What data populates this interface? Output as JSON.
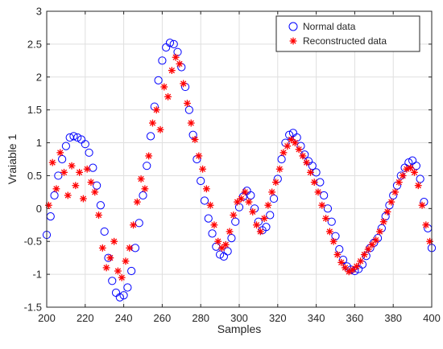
{
  "chart_data": {
    "type": "scatter",
    "title": "",
    "xlabel": "Samples",
    "ylabel": "Vraiable 1",
    "xlim": [
      200,
      400
    ],
    "ylim": [
      -1.5,
      3
    ],
    "xticks": [
      200,
      220,
      240,
      260,
      280,
      300,
      320,
      340,
      360,
      380,
      400
    ],
    "yticks": [
      -1.5,
      -1,
      -0.5,
      0,
      0.5,
      1,
      1.5,
      2,
      2.5,
      3
    ],
    "xtick_labels": [
      "200",
      "220",
      "240",
      "260",
      "280",
      "300",
      "320",
      "340",
      "360",
      "380",
      "400"
    ],
    "ytick_labels": [
      "-1.5",
      "-1",
      "-0.5",
      "0",
      "0.5",
      "1",
      "1.5",
      "2",
      "2.5",
      "3"
    ],
    "grid": true,
    "legend_position": "top-right",
    "colors": {
      "normal": "#0000ff",
      "reconstructed": "#ff0000"
    },
    "series": [
      {
        "name": "Normal data",
        "marker": "circle",
        "x": [
          200,
          202,
          204,
          206,
          208,
          210,
          212,
          214,
          216,
          218,
          220,
          222,
          224,
          226,
          228,
          230,
          232,
          234,
          236,
          238,
          240,
          242,
          244,
          246,
          248,
          250,
          252,
          254,
          256,
          258,
          260,
          262,
          264,
          266,
          268,
          270,
          272,
          274,
          276,
          278,
          280,
          282,
          284,
          286,
          288,
          290,
          292,
          294,
          296,
          298,
          300,
          302,
          304,
          306,
          308,
          310,
          312,
          314,
          316,
          318,
          320,
          322,
          324,
          326,
          328,
          330,
          332,
          334,
          336,
          338,
          340,
          342,
          344,
          346,
          348,
          350,
          352,
          354,
          356,
          358,
          360,
          362,
          364,
          366,
          368,
          370,
          372,
          374,
          376,
          378,
          380,
          382,
          384,
          386,
          388,
          390,
          392,
          394,
          396,
          398,
          400
        ],
        "y": [
          -0.4,
          -0.12,
          0.2,
          0.5,
          0.75,
          0.95,
          1.08,
          1.1,
          1.08,
          1.05,
          0.98,
          0.85,
          0.62,
          0.35,
          0.05,
          -0.35,
          -0.75,
          -1.1,
          -1.28,
          -1.35,
          -1.32,
          -1.2,
          -0.95,
          -0.6,
          -0.22,
          0.2,
          0.65,
          1.1,
          1.55,
          1.95,
          2.25,
          2.45,
          2.52,
          2.5,
          2.38,
          2.15,
          1.85,
          1.5,
          1.12,
          0.75,
          0.42,
          0.12,
          -0.15,
          -0.38,
          -0.58,
          -0.7,
          -0.73,
          -0.65,
          -0.45,
          -0.2,
          0.02,
          0.18,
          0.27,
          0.2,
          0,
          -0.2,
          -0.33,
          -0.28,
          -0.1,
          0.15,
          0.45,
          0.75,
          1.0,
          1.12,
          1.15,
          1.08,
          0.95,
          0.82,
          0.72,
          0.65,
          0.55,
          0.4,
          0.2,
          0,
          -0.2,
          -0.42,
          -0.62,
          -0.78,
          -0.88,
          -0.93,
          -0.95,
          -0.92,
          -0.85,
          -0.72,
          -0.6,
          -0.52,
          -0.45,
          -0.3,
          -0.12,
          0.05,
          0.2,
          0.35,
          0.5,
          0.62,
          0.7,
          0.73,
          0.65,
          0.45,
          0.1,
          -0.3,
          -0.6
        ]
      },
      {
        "name": "Reconstructed data",
        "marker": "asterisk",
        "x": [
          201,
          203,
          205,
          207,
          209,
          211,
          213,
          215,
          217,
          219,
          221,
          223,
          225,
          227,
          229,
          231,
          233,
          235,
          237,
          239,
          241,
          243,
          245,
          247,
          249,
          251,
          253,
          255,
          257,
          259,
          261,
          263,
          265,
          267,
          269,
          271,
          273,
          275,
          277,
          279,
          281,
          283,
          285,
          287,
          289,
          291,
          293,
          295,
          297,
          299,
          301,
          303,
          305,
          307,
          309,
          311,
          313,
          315,
          317,
          319,
          321,
          323,
          325,
          327,
          329,
          331,
          333,
          335,
          337,
          339,
          341,
          343,
          345,
          347,
          349,
          351,
          353,
          355,
          357,
          359,
          361,
          363,
          365,
          367,
          369,
          371,
          373,
          375,
          377,
          379,
          381,
          383,
          385,
          387,
          389,
          391,
          393,
          395,
          397,
          399
        ],
        "y": [
          0.05,
          0.7,
          0.3,
          0.85,
          0.55,
          0.2,
          0.65,
          0.35,
          0.55,
          0.15,
          0.6,
          0.4,
          0.25,
          -0.1,
          -0.6,
          -0.9,
          -0.75,
          -0.5,
          -0.95,
          -1.05,
          -0.8,
          -0.6,
          -0.25,
          0.1,
          0.45,
          0.3,
          0.8,
          1.3,
          1.5,
          1.2,
          1.85,
          1.7,
          2.1,
          2.3,
          2.2,
          1.9,
          1.6,
          1.3,
          1.05,
          0.8,
          0.6,
          0.3,
          0.05,
          -0.25,
          -0.5,
          -0.6,
          -0.55,
          -0.35,
          -0.1,
          0.1,
          0.15,
          0.25,
          0.1,
          -0.05,
          -0.25,
          -0.35,
          -0.15,
          0.05,
          0.25,
          0.4,
          0.6,
          0.85,
          0.95,
          1.05,
          1.0,
          0.9,
          0.8,
          0.7,
          0.55,
          0.4,
          0.25,
          0.05,
          -0.15,
          -0.35,
          -0.5,
          -0.7,
          -0.82,
          -0.9,
          -0.96,
          -0.93,
          -0.88,
          -0.8,
          -0.7,
          -0.62,
          -0.55,
          -0.48,
          -0.35,
          -0.2,
          -0.05,
          0.1,
          0.25,
          0.4,
          0.5,
          0.6,
          0.62,
          0.55,
          0.35,
          0.05,
          -0.25,
          -0.5
        ]
      }
    ]
  }
}
